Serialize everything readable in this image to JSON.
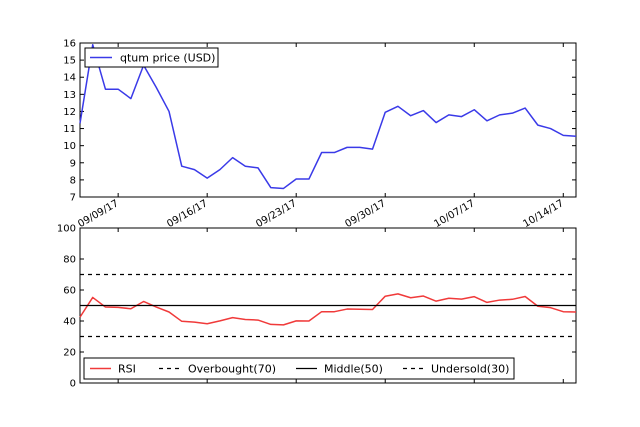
{
  "chart_data": [
    {
      "type": "line",
      "ylabel": "",
      "xlabel": "",
      "ylim": [
        7,
        16
      ],
      "yticks": [
        7,
        8,
        9,
        10,
        11,
        12,
        13,
        14,
        15,
        16
      ],
      "x_tick_labels": [
        "09/09/17",
        "09/16/17",
        "09/23/17",
        "09/30/17",
        "10/07/17",
        "10/14/17"
      ],
      "x_tick_days": [
        3,
        10,
        17,
        24,
        31,
        38
      ],
      "x_range_days": [
        0,
        39
      ],
      "legend_position": "top-left",
      "grid": false,
      "series": [
        {
          "name": "qtum price (USD)",
          "color": "#3a3ae8",
          "x_days": [
            0,
            1,
            2,
            3,
            4,
            5,
            6,
            7,
            8,
            9,
            10,
            11,
            12,
            13,
            14,
            15,
            16,
            17,
            18,
            19,
            20,
            21,
            22,
            23,
            24,
            25,
            26,
            27,
            28,
            29,
            30,
            31,
            32,
            33,
            34,
            35,
            36,
            37,
            38,
            39
          ],
          "values": [
            11.3,
            15.9,
            13.3,
            13.3,
            12.75,
            14.7,
            13.4,
            12.0,
            8.8,
            8.6,
            8.1,
            8.6,
            9.3,
            8.8,
            8.7,
            7.55,
            7.5,
            8.05,
            8.05,
            9.6,
            9.6,
            9.9,
            9.9,
            9.8,
            11.95,
            12.3,
            11.75,
            12.05,
            11.35,
            11.8,
            11.7,
            12.1,
            11.45,
            11.8,
            11.9,
            12.2,
            11.2,
            11.0,
            10.6,
            10.55
          ]
        }
      ]
    },
    {
      "type": "line",
      "ylabel": "",
      "xlabel": "",
      "ylim": [
        0,
        100
      ],
      "yticks": [
        0,
        20,
        40,
        60,
        80,
        100
      ],
      "x_range_days": [
        0,
        39
      ],
      "legend_position": "bottom",
      "grid": false,
      "series": [
        {
          "name": "RSI",
          "color": "#f03a3a",
          "style": "solid",
          "x_days": [
            0,
            1,
            2,
            3,
            4,
            5,
            6,
            7,
            8,
            9,
            10,
            11,
            12,
            13,
            14,
            15,
            16,
            17,
            18,
            19,
            20,
            21,
            22,
            23,
            24,
            25,
            26,
            27,
            28,
            29,
            30,
            31,
            32,
            33,
            34,
            35,
            36,
            37,
            38,
            39
          ],
          "values": [
            42.5,
            55.2,
            49.0,
            48.8,
            47.9,
            52.6,
            49.0,
            45.8,
            39.8,
            39.3,
            38.2,
            40.1,
            42.2,
            41.0,
            40.6,
            37.8,
            37.5,
            40.1,
            40.0,
            46.0,
            46.0,
            47.7,
            47.6,
            47.4,
            56.0,
            57.5,
            55.0,
            56.1,
            52.8,
            54.7,
            54.1,
            55.7,
            52.0,
            53.5,
            54.0,
            55.8,
            49.5,
            48.6,
            46.0,
            45.8
          ]
        },
        {
          "name": "Overbought(70)",
          "color": "#000000",
          "style": "dashed",
          "level": 70
        },
        {
          "name": "Middle(50)",
          "color": "#000000",
          "style": "solid",
          "level": 50
        },
        {
          "name": "Undersold(30)",
          "color": "#000000",
          "style": "dashed",
          "level": 30
        }
      ]
    }
  ]
}
